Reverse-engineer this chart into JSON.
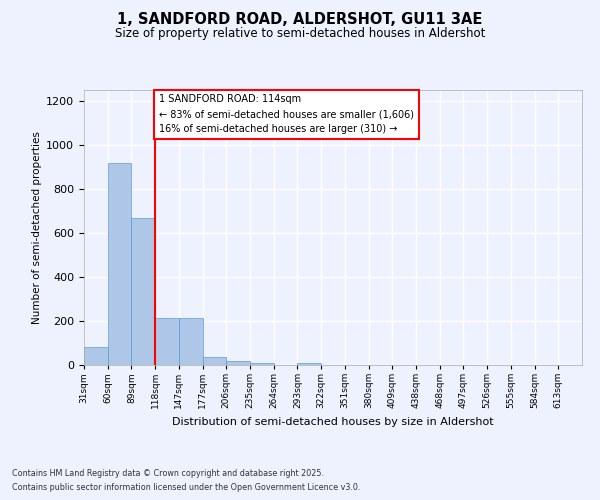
{
  "title_line1": "1, SANDFORD ROAD, ALDERSHOT, GU11 3AE",
  "title_line2": "Size of property relative to semi-detached houses in Aldershot",
  "xlabel": "Distribution of semi-detached houses by size in Aldershot",
  "ylabel": "Number of semi-detached properties",
  "categories": [
    "31sqm",
    "60sqm",
    "89sqm",
    "118sqm",
    "147sqm",
    "177sqm",
    "206sqm",
    "235sqm",
    "264sqm",
    "293sqm",
    "322sqm",
    "351sqm",
    "380sqm",
    "409sqm",
    "438sqm",
    "468sqm",
    "497sqm",
    "526sqm",
    "555sqm",
    "584sqm",
    "613sqm"
  ],
  "values": [
    80,
    920,
    670,
    215,
    215,
    35,
    20,
    10,
    0,
    10,
    0,
    0,
    0,
    0,
    0,
    0,
    0,
    0,
    0,
    0,
    0
  ],
  "bar_color": "#aec6e8",
  "bar_edge_color": "#5a9fd4",
  "red_line_x": 3.0,
  "annotation_line1": "1 SANDFORD ROAD: 114sqm",
  "annotation_line2": "← 83% of semi-detached houses are smaller (1,606)",
  "annotation_line3": "16% of semi-detached houses are larger (310) →",
  "ylim": [
    0,
    1250
  ],
  "yticks": [
    0,
    200,
    400,
    600,
    800,
    1000,
    1200
  ],
  "background_color": "#eef2ff",
  "grid_color": "#ffffff",
  "footer_line1": "Contains HM Land Registry data © Crown copyright and database right 2025.",
  "footer_line2": "Contains public sector information licensed under the Open Government Licence v3.0."
}
